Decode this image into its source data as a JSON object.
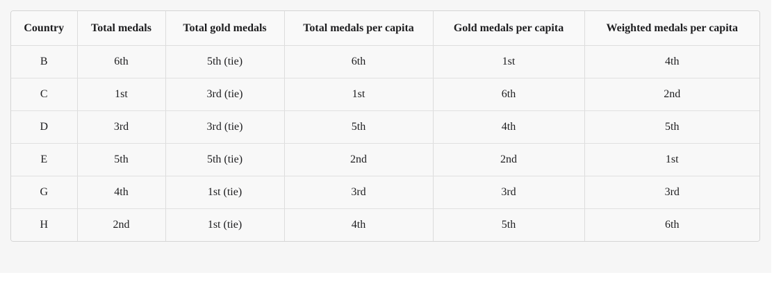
{
  "chart_data": {
    "type": "table",
    "title": "",
    "columns": [
      "Country",
      "Total medals",
      "Total gold medals",
      "Total medals per capita",
      "Gold medals per capita",
      "Weighted medals per capita"
    ],
    "rows": [
      [
        "B",
        "6th",
        "5th (tie)",
        "6th",
        "1st",
        "4th"
      ],
      [
        "C",
        "1st",
        "3rd (tie)",
        "1st",
        "6th",
        "2nd"
      ],
      [
        "D",
        "3rd",
        "3rd (tie)",
        "5th",
        "4th",
        "5th"
      ],
      [
        "E",
        "5th",
        "5th (tie)",
        "2nd",
        "2nd",
        "1st"
      ],
      [
        "G",
        "4th",
        "1st (tie)",
        "3rd",
        "3rd",
        "3rd"
      ],
      [
        "H",
        "2nd",
        "1st (tie)",
        "4th",
        "5th",
        "6th"
      ]
    ]
  },
  "colors": {
    "page_background": "#ffffff",
    "pane_background": "#f6f6f6",
    "table_background": "#f8f8f8",
    "border": "#d5d5d5",
    "row_divider": "#e0e0e0",
    "column_divider": "#dcdcdc",
    "text": "#1d1d1f"
  }
}
